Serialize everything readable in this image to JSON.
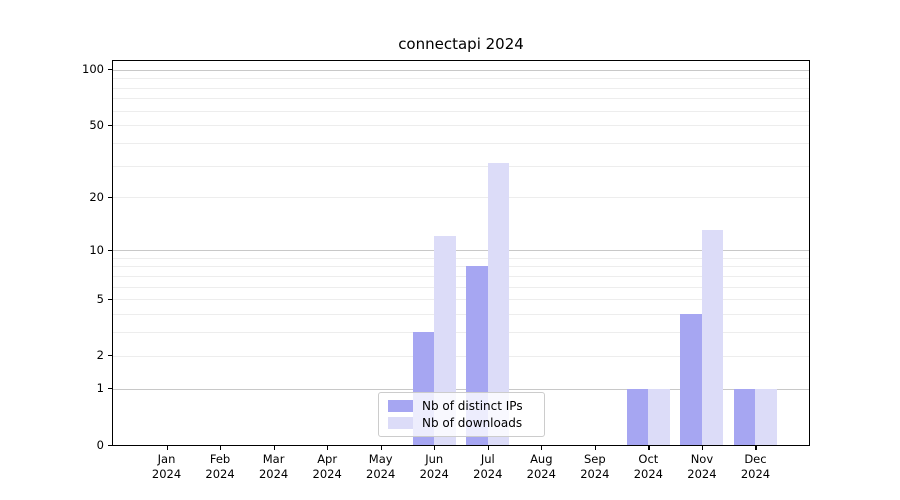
{
  "title": "connectapi 2024",
  "chart_data": {
    "type": "bar",
    "title": "connectapi 2024",
    "months": [
      "Jan",
      "Feb",
      "Mar",
      "Apr",
      "May",
      "Jun",
      "Jul",
      "Aug",
      "Sep",
      "Oct",
      "Nov",
      "Dec"
    ],
    "year_label": "2024",
    "series": [
      {
        "name": "Nb of distinct IPs",
        "color": "#a6a6f2",
        "values": [
          0,
          0,
          0,
          0,
          0,
          3,
          8,
          0,
          0,
          1,
          4,
          1
        ]
      },
      {
        "name": "Nb of downloads",
        "color": "#dcdcf8",
        "values": [
          0,
          0,
          0,
          0,
          0,
          12,
          31,
          0,
          0,
          1,
          13,
          1
        ]
      }
    ],
    "yscale": "log1p",
    "ylim": [
      0,
      113
    ],
    "y_major_ticks": [
      100,
      50,
      20,
      10,
      5,
      2,
      1,
      0
    ],
    "y_major_gridlines": [
      100,
      10,
      1
    ],
    "y_minor_gridlines": [
      2,
      3,
      4,
      5,
      6,
      7,
      8,
      9,
      20,
      30,
      40,
      50,
      60,
      70,
      80,
      90
    ],
    "grid": true,
    "legend": {
      "position": "lower center",
      "entries": [
        "Nb of distinct IPs",
        "Nb of downloads"
      ]
    },
    "colors": {
      "axis": "#000000",
      "major_grid": "#c8c8c8",
      "minor_grid": "#ededed",
      "background": "#ffffff"
    }
  }
}
